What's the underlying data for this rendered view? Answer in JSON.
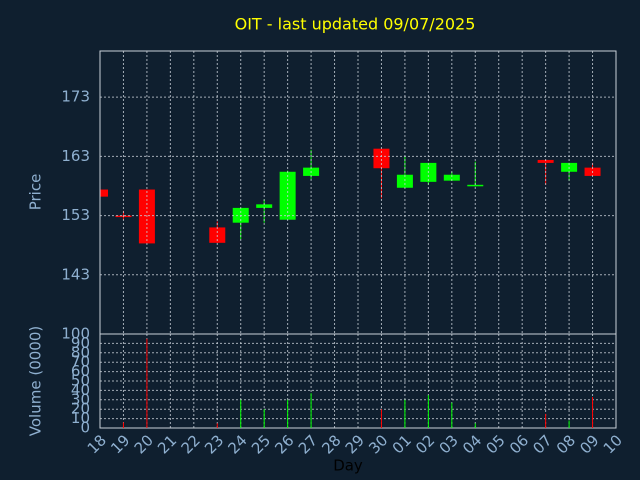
{
  "chart_data": {
    "type": "candlestick",
    "title": "OIT - last updated 09/07/2025",
    "xlabel": "Day",
    "ylabel": "Price",
    "volume_label": "Volume (0000)",
    "categories": [
      "18",
      "19",
      "20",
      "21",
      "22",
      "23",
      "24",
      "25",
      "26",
      "27",
      "28",
      "29",
      "30",
      "01",
      "02",
      "03",
      "04",
      "05",
      "06",
      "07",
      "08",
      "09",
      "10"
    ],
    "open": [
      157.4,
      153.0,
      157.4,
      null,
      null,
      151.0,
      151.8,
      154.3,
      152.3,
      159.7,
      null,
      null,
      164.3,
      157.7,
      158.7,
      158.9,
      158.0,
      null,
      null,
      162.4,
      160.4,
      161.1,
      null
    ],
    "high": [
      157.4,
      153.8,
      157.4,
      null,
      null,
      152.0,
      154.3,
      155.7,
      160.6,
      164.1,
      null,
      null,
      164.3,
      163.0,
      161.9,
      160.4,
      162.1,
      null,
      null,
      162.4,
      161.9,
      161.9,
      null
    ],
    "low": [
      156.2,
      152.3,
      148.3,
      null,
      null,
      148.4,
      149.0,
      151.8,
      152.3,
      159.1,
      null,
      null,
      155.9,
      157.7,
      158.2,
      158.9,
      157.9,
      null,
      null,
      158.2,
      158.9,
      159.7,
      null
    ],
    "close": [
      156.2,
      152.8,
      148.3,
      null,
      null,
      148.4,
      154.3,
      154.9,
      160.4,
      161.1,
      null,
      null,
      161.0,
      159.9,
      161.9,
      159.9,
      158.2,
      null,
      null,
      161.9,
      161.9,
      159.7,
      null
    ],
    "volume": [
      null,
      6,
      95,
      null,
      null,
      5,
      30,
      20,
      30,
      37,
      null,
      null,
      20,
      30,
      35,
      27,
      5,
      null,
      null,
      15,
      8,
      33,
      null
    ],
    "up_color": "#00ff00",
    "down_color": "#ff0000",
    "title_color": "#ffff00",
    "ylim": [
      133,
      180.8
    ],
    "yticks": [
      143,
      153,
      163,
      173
    ],
    "volume_ylim": [
      0,
      100
    ],
    "volume_yticks": [
      0,
      10,
      20,
      30,
      40,
      50,
      60,
      70,
      80,
      90,
      100
    ],
    "grid": true
  }
}
